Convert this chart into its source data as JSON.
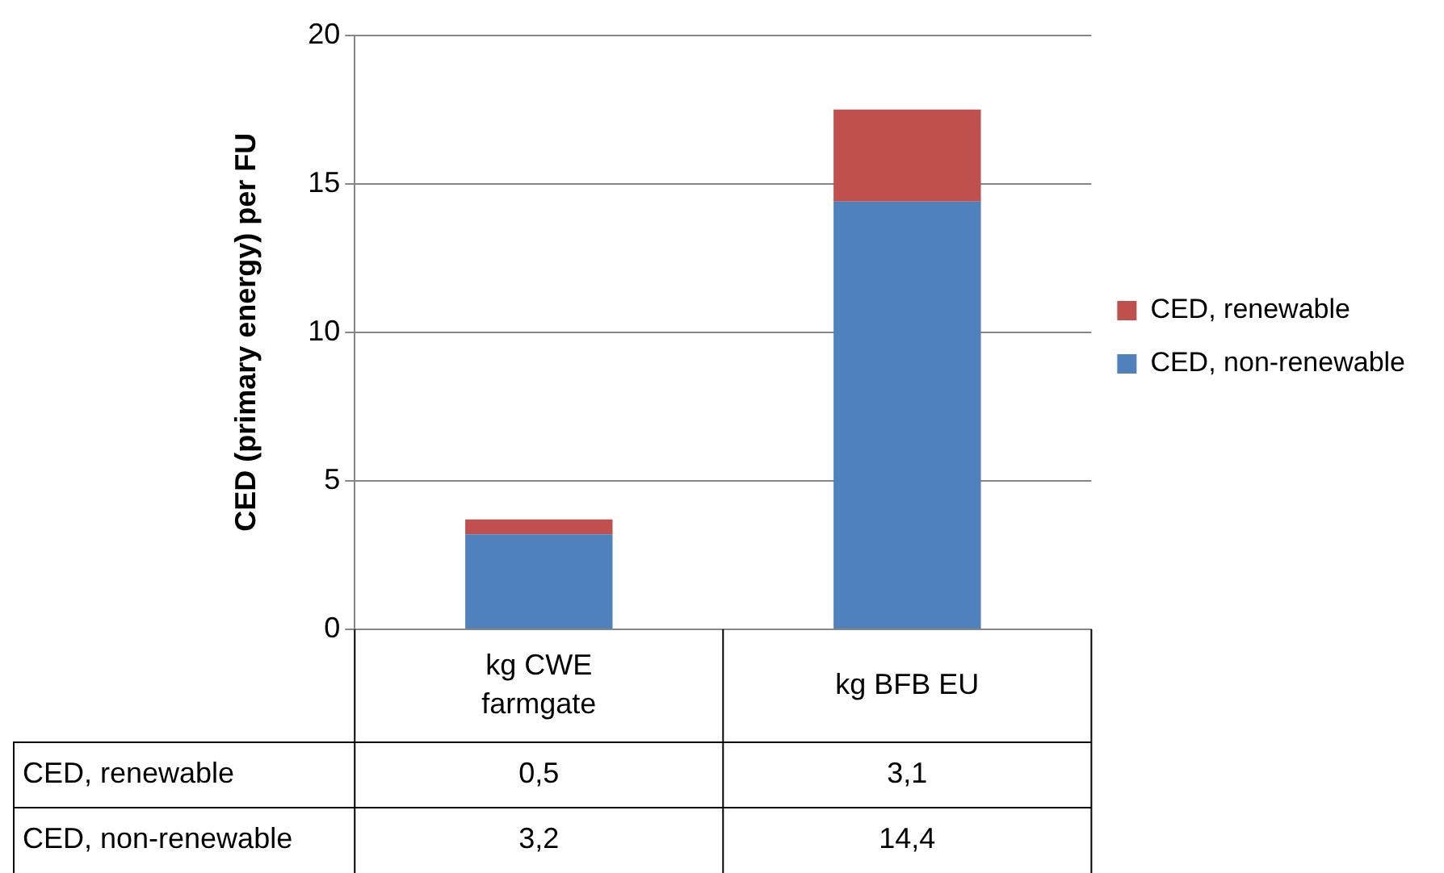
{
  "chart_data": {
    "type": "bar",
    "ylabel": "CED (primary energy) per FU",
    "categories": [
      "kg CWE farmgate",
      "kg BFB EU"
    ],
    "stacked": true,
    "series": [
      {
        "name": "CED, non-renewable",
        "color": "#4f81bd",
        "values": [
          3.2,
          14.4
        ],
        "value_labels": [
          "3,2",
          "14,4"
        ]
      },
      {
        "name": "CED, renewable",
        "color": "#c0504d",
        "values": [
          0.5,
          3.1
        ],
        "value_labels": [
          "0,5",
          "3,1"
        ]
      }
    ],
    "ylim": [
      0,
      20
    ],
    "yticks": [
      0,
      5,
      10,
      15,
      20
    ],
    "grid": "y",
    "legend": "right"
  }
}
